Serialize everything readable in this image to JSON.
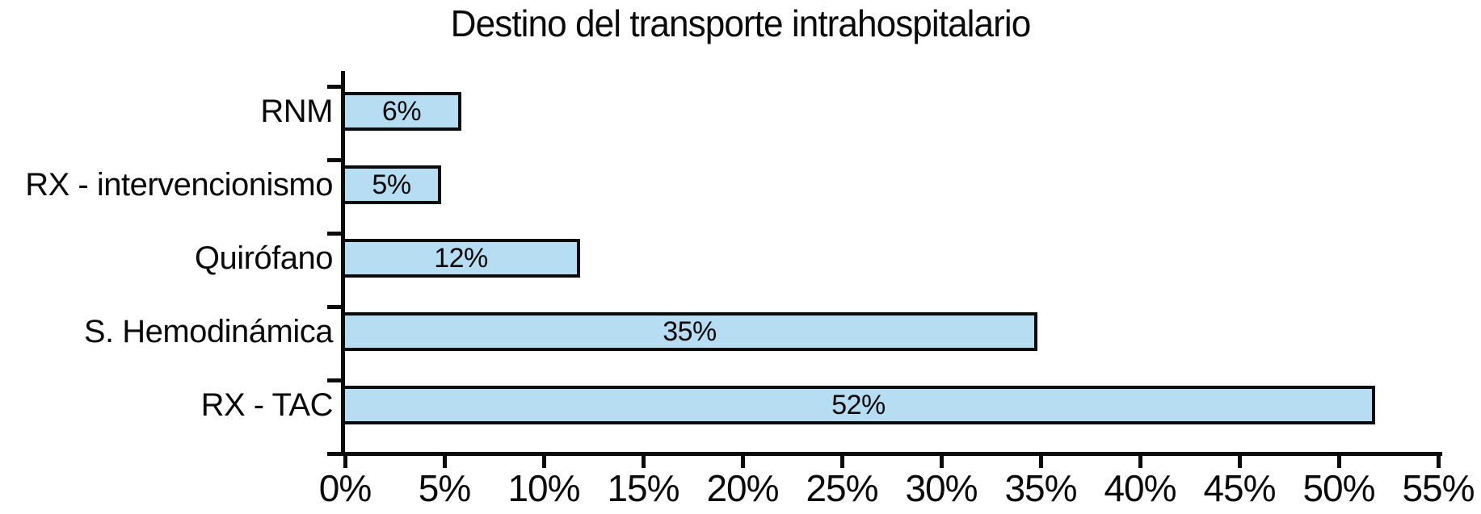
{
  "chart_data": {
    "type": "bar",
    "orientation": "horizontal",
    "title": "Destino del transporte intrahospitalario",
    "categories": [
      "RNM",
      "RX - intervencionismo",
      "Quirófano",
      "S. Hemodinámica",
      "RX - TAC"
    ],
    "values": [
      6,
      5,
      12,
      35,
      52
    ],
    "value_labels": [
      "6%",
      "5%",
      "12%",
      "35%",
      "52%"
    ],
    "xlabel": "",
    "ylabel": "",
    "xlim": [
      0,
      55
    ],
    "x_tick_values": [
      0,
      5,
      10,
      15,
      20,
      25,
      30,
      35,
      40,
      45,
      50,
      55
    ],
    "x_tick_labels": [
      "0%",
      "5%",
      "10%",
      "15%",
      "20%",
      "25%",
      "30%",
      "35%",
      "40%",
      "45%",
      "50%",
      "55%"
    ],
    "grid": false,
    "legend": "none",
    "colors": {
      "bar_fill": "#b7ddf2",
      "bar_border": "#0b0b0b",
      "axis": "#0b0b0b",
      "text": "#0a0a0a",
      "background": "#ffffff"
    }
  }
}
